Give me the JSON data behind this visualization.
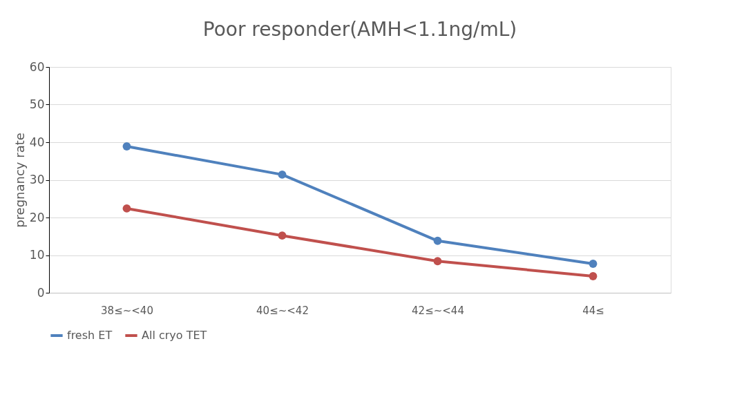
{
  "chart_data": {
    "type": "line",
    "title": "Poor responder(AMH<1.1ng/mL)",
    "ylabel": "pregnancy rate",
    "categories": [
      "38≤~<40",
      "40≤~<42",
      "42≤~<44",
      "44≤"
    ],
    "series": [
      {
        "name": "fresh ET",
        "color": "#4f81bd",
        "values": [
          38.9,
          31.4,
          13.8,
          7.7
        ]
      },
      {
        "name": "All cryo TET",
        "color": "#c0504d",
        "values": [
          22.4,
          15.2,
          8.4,
          4.4
        ]
      }
    ],
    "ylim": [
      0,
      60
    ],
    "yticks": [
      0,
      10,
      20,
      30,
      40,
      50,
      60
    ],
    "grid": "y",
    "legend": "bottom",
    "marker": "circle",
    "line_style": "solid"
  }
}
